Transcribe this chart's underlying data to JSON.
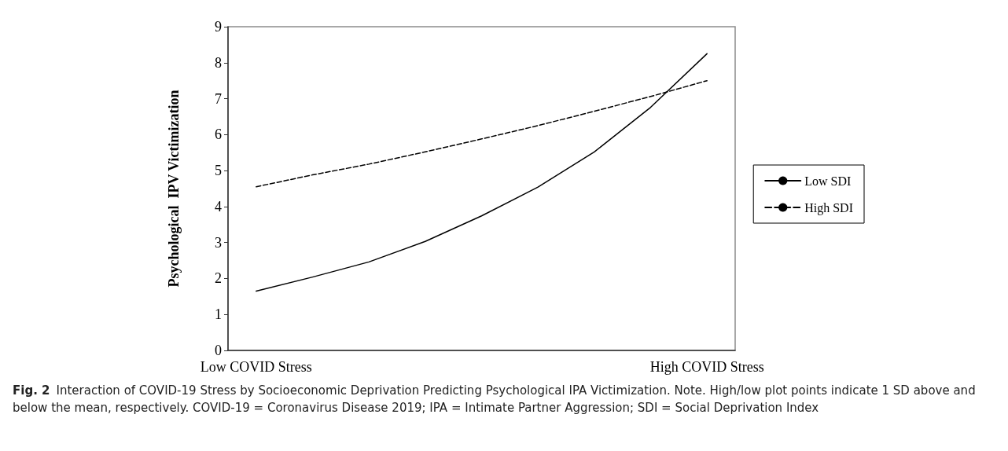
{
  "chart_data": {
    "type": "line",
    "ylabel": "Psychological  IPV Victimization",
    "categories": [
      "Low COVID Stress",
      null,
      null,
      null,
      null,
      null,
      null,
      null,
      "High COVID Stress"
    ],
    "series": [
      {
        "name": "Low SDI",
        "color": "#000000",
        "line_style": "solid",
        "values": [
          1.65,
          2.04,
          2.46,
          3.03,
          3.74,
          4.54,
          5.52,
          6.76,
          8.25
        ]
      },
      {
        "name": "High SDI",
        "color": "#000000",
        "line_style": "dashed",
        "values": [
          4.55,
          4.88,
          5.18,
          5.52,
          5.88,
          6.25,
          6.65,
          7.06,
          7.5
        ]
      }
    ],
    "ylim": [
      0,
      9
    ],
    "yticks": [
      0,
      1,
      2,
      3,
      4,
      5,
      6,
      7,
      8,
      9
    ],
    "grid": false,
    "legend": "right",
    "marker": "none",
    "annotations": [
      "Fig. 2",
      "Interaction of COVID-19 Stress by Socioeconomic Deprivation Predicting Psychological IPA Victimization. Note. High/low plot points indicate 1 SD above and below the mean, respectively. COVID-19 = Coronavirus Disease 2019; IPA = Intimate Partner Aggression; SDI = Social Deprivation Index"
    ]
  }
}
